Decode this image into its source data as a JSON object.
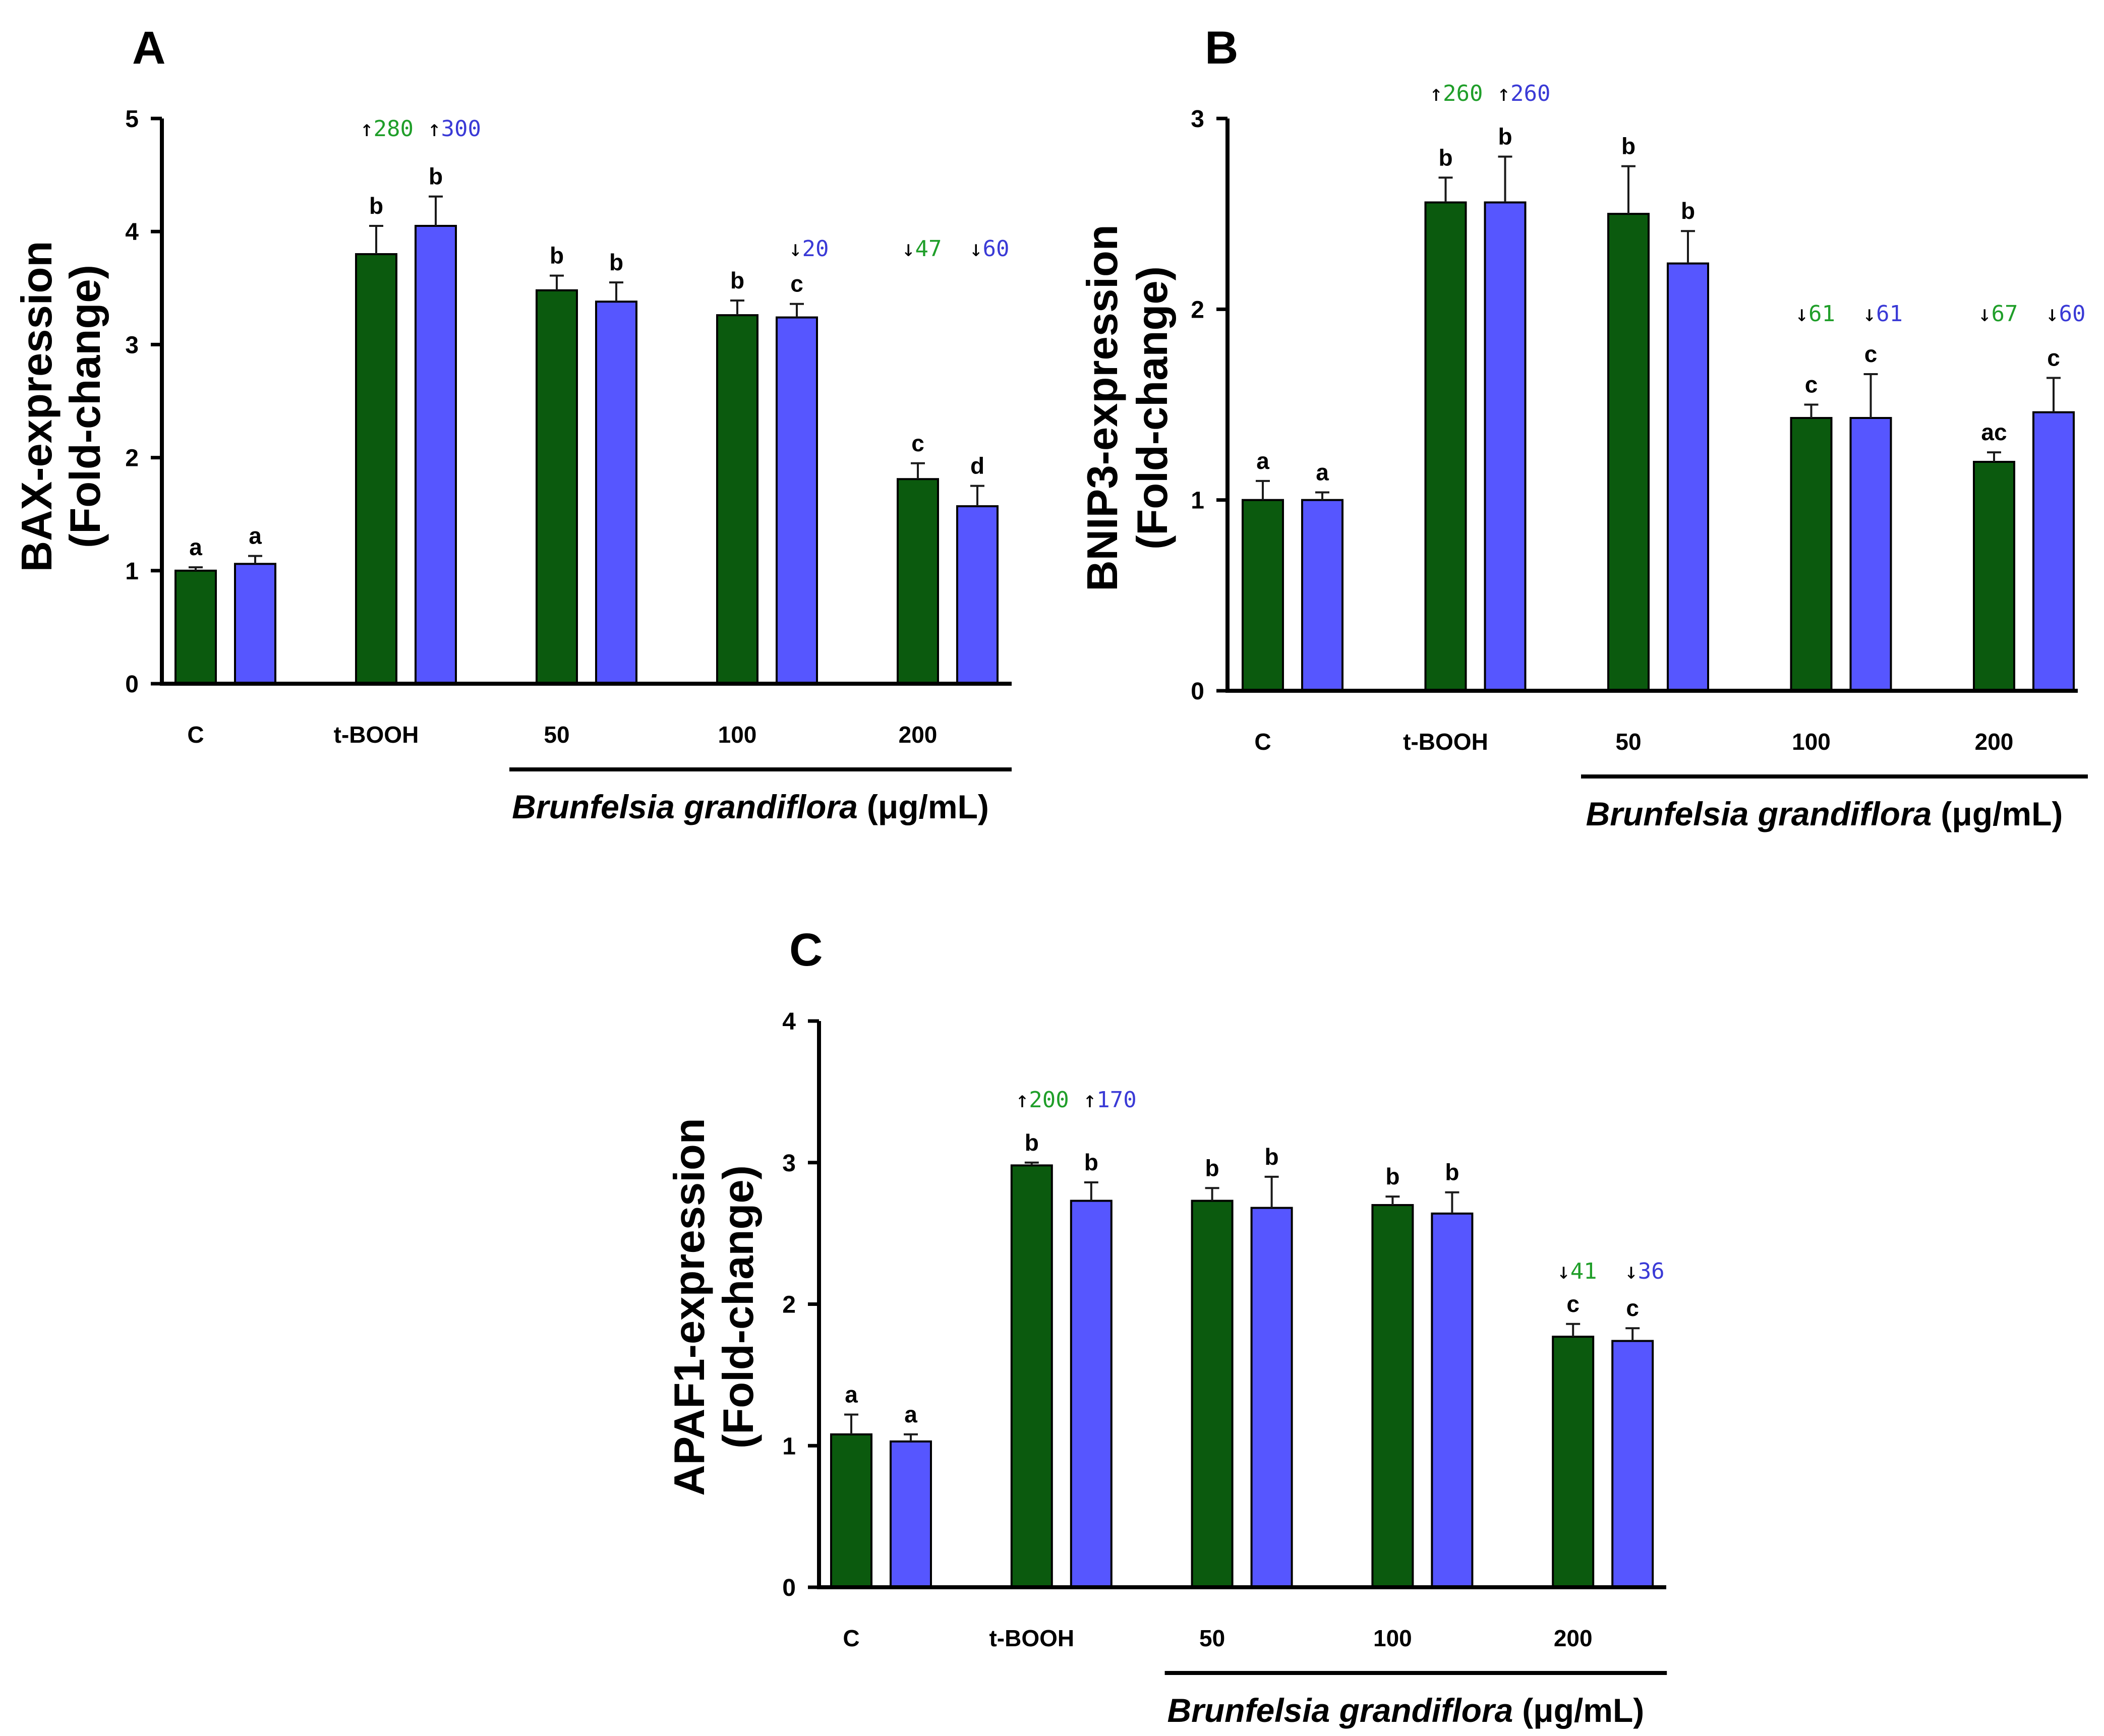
{
  "figure": {
    "background": "#ffffff",
    "axis_color": "#000000",
    "error_color": "#1a1a1a"
  },
  "chart_data": [
    {
      "panel": "A",
      "type": "bar",
      "ylabel": [
        "BAX-expression",
        "(Fold-change)"
      ],
      "ylim": [
        0,
        5
      ],
      "yticks": [
        0,
        1,
        2,
        3,
        4,
        5
      ],
      "categories": [
        "C",
        "t-BOOH",
        "50",
        "100",
        "200"
      ],
      "group_label": {
        "name": "Brunfelsia grandiflora",
        "unit": "(μg/mL)",
        "span": [
          2,
          4
        ]
      },
      "series": [
        {
          "color": "#0b5a0e",
          "label_color": "#1f9e29",
          "values": [
            1.0,
            3.8,
            3.48,
            3.26,
            1.81
          ],
          "errors": [
            0.03,
            0.25,
            0.13,
            0.13,
            0.14
          ],
          "letters": [
            "a",
            "b",
            "b",
            "b",
            "c"
          ]
        },
        {
          "color": "#5656ff",
          "label_color": "#3a3ad6",
          "values": [
            1.06,
            4.05,
            3.38,
            3.24,
            1.57
          ],
          "errors": [
            0.07,
            0.26,
            0.17,
            0.12,
            0.18
          ],
          "letters": [
            "a",
            "b",
            "b",
            "c",
            "d"
          ]
        }
      ],
      "annotations": [
        {
          "category_index": 1,
          "series": 0,
          "arrow": "↑",
          "value": "280"
        },
        {
          "category_index": 1,
          "series": 1,
          "arrow": "↑",
          "value": "300"
        },
        {
          "category_index": 3,
          "series": 1,
          "arrow": "↓",
          "value": "20"
        },
        {
          "category_index": 4,
          "series": 0,
          "arrow": "↓",
          "value": "47"
        },
        {
          "category_index": 4,
          "series": 1,
          "arrow": "↓",
          "value": "60"
        }
      ]
    },
    {
      "panel": "B",
      "type": "bar",
      "ylabel": [
        "BNIP3-expression",
        "(Fold-change)"
      ],
      "ylim": [
        0,
        3
      ],
      "yticks": [
        0,
        1,
        2,
        3
      ],
      "categories": [
        "C",
        "t-BOOH",
        "50",
        "100",
        "200"
      ],
      "group_label": {
        "name": "Brunfelsia grandiflora",
        "unit": "(μg/mL)",
        "span": [
          2,
          4
        ]
      },
      "series": [
        {
          "color": "#0b5a0e",
          "label_color": "#1f9e29",
          "values": [
            1.0,
            2.56,
            2.5,
            1.43,
            1.2
          ],
          "errors": [
            0.1,
            0.13,
            0.25,
            0.07,
            0.05
          ],
          "letters": [
            "a",
            "b",
            "b",
            "c",
            "ac"
          ]
        },
        {
          "color": "#5656ff",
          "label_color": "#3a3ad6",
          "values": [
            1.0,
            2.56,
            2.24,
            1.43,
            1.46
          ],
          "errors": [
            0.04,
            0.24,
            0.17,
            0.23,
            0.18
          ],
          "letters": [
            "a",
            "b",
            "b",
            "c",
            "c"
          ]
        }
      ],
      "annotations": [
        {
          "category_index": 1,
          "series": 0,
          "arrow": "↑",
          "value": "260"
        },
        {
          "category_index": 1,
          "series": 1,
          "arrow": "↑",
          "value": "260"
        },
        {
          "category_index": 3,
          "series": 0,
          "arrow": "↓",
          "value": "61"
        },
        {
          "category_index": 3,
          "series": 1,
          "arrow": "↓",
          "value": "61"
        },
        {
          "category_index": 4,
          "series": 0,
          "arrow": "↓",
          "value": "67"
        },
        {
          "category_index": 4,
          "series": 1,
          "arrow": "↓",
          "value": "60"
        }
      ]
    },
    {
      "panel": "C",
      "type": "bar",
      "ylabel": [
        "APAF1-expression",
        "(Fold-change)"
      ],
      "ylim": [
        0,
        4
      ],
      "yticks": [
        0,
        1,
        2,
        3,
        4
      ],
      "categories": [
        "C",
        "t-BOOH",
        "50",
        "100",
        "200"
      ],
      "group_label": {
        "name": "Brunfelsia grandiflora",
        "unit": "(μg/mL)",
        "span": [
          2,
          4
        ]
      },
      "series": [
        {
          "color": "#0b5a0e",
          "label_color": "#1f9e29",
          "values": [
            1.08,
            2.98,
            2.73,
            2.7,
            1.77
          ],
          "errors": [
            0.14,
            0.02,
            0.09,
            0.06,
            0.09
          ],
          "letters": [
            "a",
            "b",
            "b",
            "b",
            "c"
          ]
        },
        {
          "color": "#5656ff",
          "label_color": "#3a3ad6",
          "values": [
            1.03,
            2.73,
            2.68,
            2.64,
            1.74
          ],
          "errors": [
            0.05,
            0.13,
            0.22,
            0.15,
            0.09
          ],
          "letters": [
            "a",
            "b",
            "b",
            "b",
            "c"
          ]
        }
      ],
      "annotations": [
        {
          "category_index": 1,
          "series": 0,
          "arrow": "↑",
          "value": "200"
        },
        {
          "category_index": 1,
          "series": 1,
          "arrow": "↑",
          "value": "170"
        },
        {
          "category_index": 4,
          "series": 0,
          "arrow": "↓",
          "value": "41"
        },
        {
          "category_index": 4,
          "series": 1,
          "arrow": "↓",
          "value": "36"
        }
      ]
    }
  ]
}
